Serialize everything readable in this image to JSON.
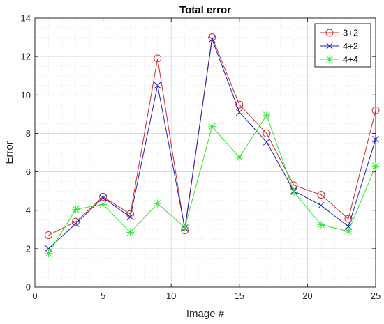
{
  "chart_data": {
    "type": "line",
    "title": "Total error",
    "xlabel": "Image #",
    "ylabel": "Error",
    "xlim": [
      0,
      25
    ],
    "ylim": [
      0,
      14
    ],
    "xticks": [
      0,
      5,
      10,
      15,
      20,
      25
    ],
    "yticks": [
      0,
      2,
      4,
      6,
      8,
      10,
      12,
      14
    ],
    "grid": true,
    "minor_grid": true,
    "legend_position": "top-right",
    "x": [
      1,
      3,
      5,
      7,
      9,
      11,
      13,
      15,
      17,
      19,
      21,
      23,
      25
    ],
    "series": [
      {
        "name": "3+2",
        "color": "#d62728",
        "marker": "circle",
        "values": [
          2.7,
          3.4,
          4.7,
          3.8,
          11.9,
          2.95,
          13.0,
          9.5,
          8.0,
          5.3,
          4.8,
          3.55,
          9.2
        ]
      },
      {
        "name": "4+2",
        "color": "#1f1fbf",
        "marker": "x",
        "values": [
          2.0,
          3.3,
          4.65,
          3.65,
          10.5,
          3.05,
          12.9,
          9.1,
          7.55,
          5.0,
          4.25,
          3.15,
          7.7
        ]
      },
      {
        "name": "4+4",
        "color": "#2ee62e",
        "marker": "asterisk",
        "values": [
          1.75,
          4.05,
          4.3,
          2.85,
          4.35,
          3.1,
          8.35,
          6.75,
          8.95,
          4.95,
          3.25,
          2.9,
          6.3
        ]
      }
    ]
  }
}
